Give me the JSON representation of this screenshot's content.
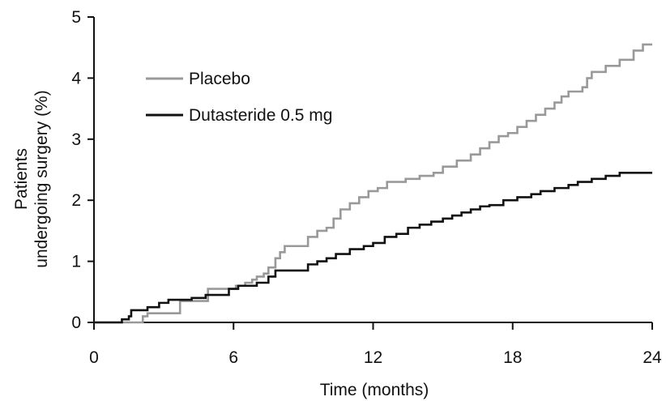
{
  "chart_data": {
    "type": "line",
    "title": "",
    "xlabel": "Time (months)",
    "ylabel_lines": [
      "Patients",
      "undergoing surgery (%)"
    ],
    "xlim": [
      0,
      24
    ],
    "ylim": [
      0,
      5
    ],
    "xticks": [
      "0",
      "6",
      "12",
      "18",
      "24"
    ],
    "yticks": [
      "0",
      "1",
      "2",
      "3",
      "4",
      "5"
    ],
    "grid": false,
    "legend_position": "top-left",
    "step": true,
    "series": [
      {
        "name": "Placebo",
        "color": "#999999",
        "points": [
          [
            0,
            0
          ],
          [
            2.0,
            0
          ],
          [
            2.1,
            0.1
          ],
          [
            2.3,
            0.15
          ],
          [
            3.5,
            0.15
          ],
          [
            3.7,
            0.35
          ],
          [
            4.8,
            0.35
          ],
          [
            4.9,
            0.55
          ],
          [
            6.0,
            0.55
          ],
          [
            6.1,
            0.6
          ],
          [
            6.5,
            0.65
          ],
          [
            6.8,
            0.7
          ],
          [
            7.0,
            0.75
          ],
          [
            7.3,
            0.8
          ],
          [
            7.5,
            0.9
          ],
          [
            7.8,
            1.05
          ],
          [
            8.0,
            1.15
          ],
          [
            8.2,
            1.25
          ],
          [
            9.0,
            1.25
          ],
          [
            9.2,
            1.4
          ],
          [
            9.6,
            1.5
          ],
          [
            10.0,
            1.55
          ],
          [
            10.3,
            1.7
          ],
          [
            10.6,
            1.85
          ],
          [
            11.0,
            1.95
          ],
          [
            11.4,
            2.05
          ],
          [
            11.8,
            2.15
          ],
          [
            12.2,
            2.2
          ],
          [
            12.6,
            2.3
          ],
          [
            13.4,
            2.35
          ],
          [
            14.0,
            2.4
          ],
          [
            14.6,
            2.45
          ],
          [
            15.0,
            2.55
          ],
          [
            15.6,
            2.65
          ],
          [
            16.2,
            2.75
          ],
          [
            16.6,
            2.85
          ],
          [
            17.0,
            2.95
          ],
          [
            17.4,
            3.05
          ],
          [
            17.8,
            3.1
          ],
          [
            18.2,
            3.2
          ],
          [
            18.6,
            3.3
          ],
          [
            19.0,
            3.4
          ],
          [
            19.4,
            3.5
          ],
          [
            19.8,
            3.6
          ],
          [
            20.1,
            3.7
          ],
          [
            20.4,
            3.78
          ],
          [
            21.0,
            3.85
          ],
          [
            21.2,
            4.0
          ],
          [
            21.4,
            4.1
          ],
          [
            22.0,
            4.2
          ],
          [
            22.6,
            4.3
          ],
          [
            23.2,
            4.45
          ],
          [
            23.6,
            4.55
          ],
          [
            24.0,
            4.55
          ]
        ]
      },
      {
        "name": "Dutasteride 0.5 mg",
        "color": "#111111",
        "points": [
          [
            0,
            0
          ],
          [
            1.0,
            0
          ],
          [
            1.2,
            0.05
          ],
          [
            1.5,
            0.1
          ],
          [
            1.6,
            0.2
          ],
          [
            2.3,
            0.25
          ],
          [
            2.8,
            0.32
          ],
          [
            3.2,
            0.37
          ],
          [
            4.2,
            0.4
          ],
          [
            4.8,
            0.45
          ],
          [
            5.8,
            0.55
          ],
          [
            6.2,
            0.6
          ],
          [
            7.0,
            0.65
          ],
          [
            7.5,
            0.75
          ],
          [
            7.8,
            0.85
          ],
          [
            8.6,
            0.85
          ],
          [
            9.2,
            0.95
          ],
          [
            9.6,
            1.0
          ],
          [
            10.0,
            1.05
          ],
          [
            10.4,
            1.12
          ],
          [
            11.0,
            1.2
          ],
          [
            11.6,
            1.25
          ],
          [
            12.0,
            1.3
          ],
          [
            12.5,
            1.4
          ],
          [
            13.0,
            1.45
          ],
          [
            13.5,
            1.55
          ],
          [
            14.0,
            1.6
          ],
          [
            14.5,
            1.65
          ],
          [
            15.0,
            1.7
          ],
          [
            15.4,
            1.75
          ],
          [
            15.8,
            1.8
          ],
          [
            16.2,
            1.85
          ],
          [
            16.6,
            1.9
          ],
          [
            17.0,
            1.92
          ],
          [
            17.6,
            2.0
          ],
          [
            18.2,
            2.05
          ],
          [
            18.8,
            2.1
          ],
          [
            19.2,
            2.15
          ],
          [
            19.8,
            2.2
          ],
          [
            20.4,
            2.25
          ],
          [
            20.8,
            2.3
          ],
          [
            21.4,
            2.35
          ],
          [
            22.0,
            2.4
          ],
          [
            22.6,
            2.45
          ],
          [
            23.2,
            2.45
          ],
          [
            24.0,
            2.45
          ]
        ]
      }
    ]
  }
}
